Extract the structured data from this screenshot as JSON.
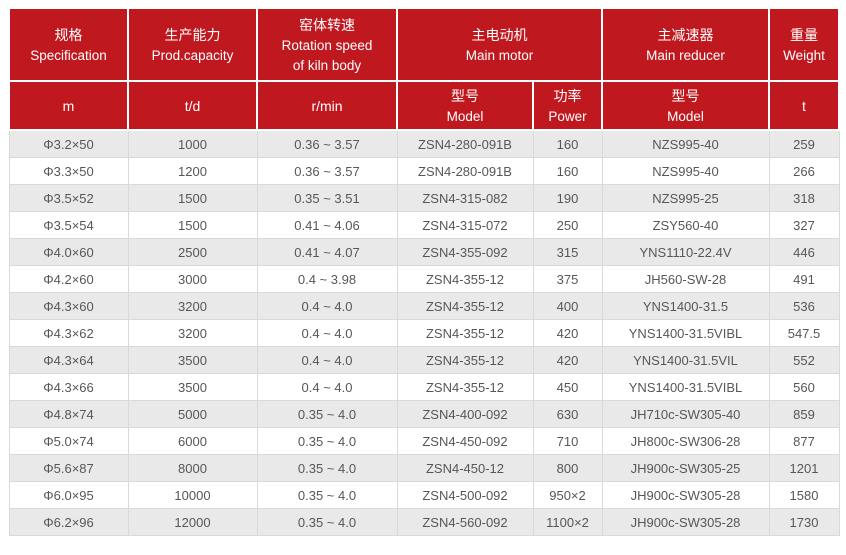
{
  "table": {
    "name": "rotary-kiln-specification-table",
    "header": {
      "groups": [
        {
          "zh": "规格",
          "en": "Specification"
        },
        {
          "zh": "生产能力",
          "en": "Prod.capacity"
        },
        {
          "zh": "窑体转速",
          "en": "Rotation speed\nof kiln body"
        },
        {
          "zh": "主电动机",
          "en": "Main motor"
        },
        {
          "zh": "主减速器",
          "en": "Main reducer"
        },
        {
          "zh": "重量",
          "en": "Weight"
        }
      ],
      "sub": {
        "spec_unit": "m",
        "capacity_unit": "t/d",
        "speed_unit": "r/min",
        "motor_model": {
          "zh": "型号",
          "en": "Model"
        },
        "motor_power": {
          "zh": "功率",
          "en": "Power"
        },
        "reducer_model": {
          "zh": "型号",
          "en": "Model"
        },
        "weight_unit": "t"
      }
    },
    "rows": [
      [
        "Φ3.2×50",
        "1000",
        "0.36 ~ 3.57",
        "ZSN4-280-091B",
        "160",
        "NZS995-40",
        "259"
      ],
      [
        "Φ3.3×50",
        "1200",
        "0.36 ~ 3.57",
        "ZSN4-280-091B",
        "160",
        "NZS995-40",
        "266"
      ],
      [
        "Φ3.5×52",
        "1500",
        "0.35 ~ 3.51",
        "ZSN4-315-082",
        "190",
        "NZS995-25",
        "318"
      ],
      [
        "Φ3.5×54",
        "1500",
        "0.41 ~ 4.06",
        "ZSN4-315-072",
        "250",
        "ZSY560-40",
        "327"
      ],
      [
        "Φ4.0×60",
        "2500",
        "0.41 ~ 4.07",
        "ZSN4-355-092",
        "315",
        "YNS1110-22.4V",
        "446"
      ],
      [
        "Φ4.2×60",
        "3000",
        "0.4 ~ 3.98",
        "ZSN4-355-12",
        "375",
        "JH560-SW-28",
        "491"
      ],
      [
        "Φ4.3×60",
        "3200",
        "0.4 ~ 4.0",
        "ZSN4-355-12",
        "400",
        "YNS1400-31.5",
        "536"
      ],
      [
        "Φ4.3×62",
        "3200",
        "0.4 ~ 4.0",
        "ZSN4-355-12",
        "420",
        "YNS1400-31.5VIBL",
        "547.5"
      ],
      [
        "Φ4.3×64",
        "3500",
        "0.4 ~ 4.0",
        "ZSN4-355-12",
        "420",
        "YNS1400-31.5VIL",
        "552"
      ],
      [
        "Φ4.3×66",
        "3500",
        "0.4 ~ 4.0",
        "ZSN4-355-12",
        "450",
        "YNS1400-31.5VIBL",
        "560"
      ],
      [
        "Φ4.8×74",
        "5000",
        "0.35 ~ 4.0",
        "ZSN4-400-092",
        "630",
        "JH710c-SW305-40",
        "859"
      ],
      [
        "Φ5.0×74",
        "6000",
        "0.35 ~ 4.0",
        "ZSN4-450-092",
        "710",
        "JH800c-SW306-28",
        "877"
      ],
      [
        "Φ5.6×87",
        "8000",
        "0.35 ~ 4.0",
        "ZSN4-450-12",
        "800",
        "JH900c-SW305-25",
        "1201"
      ],
      [
        "Φ6.0×95",
        "10000",
        "0.35 ~ 4.0",
        "ZSN4-500-092",
        "950×2",
        "JH900c-SW305-28",
        "1580"
      ],
      [
        "Φ6.2×96",
        "12000",
        "0.35 ~ 4.0",
        "ZSN4-560-092",
        "1100×2",
        "JH900c-SW305-28",
        "1730"
      ]
    ]
  },
  "colors": {
    "header_bg": "#c0181f",
    "header_text": "#ffffff",
    "stripe_bg": "#e9e9e9",
    "row_bg": "#ffffff",
    "border": "#d9d9d9",
    "body_text": "#575757"
  }
}
